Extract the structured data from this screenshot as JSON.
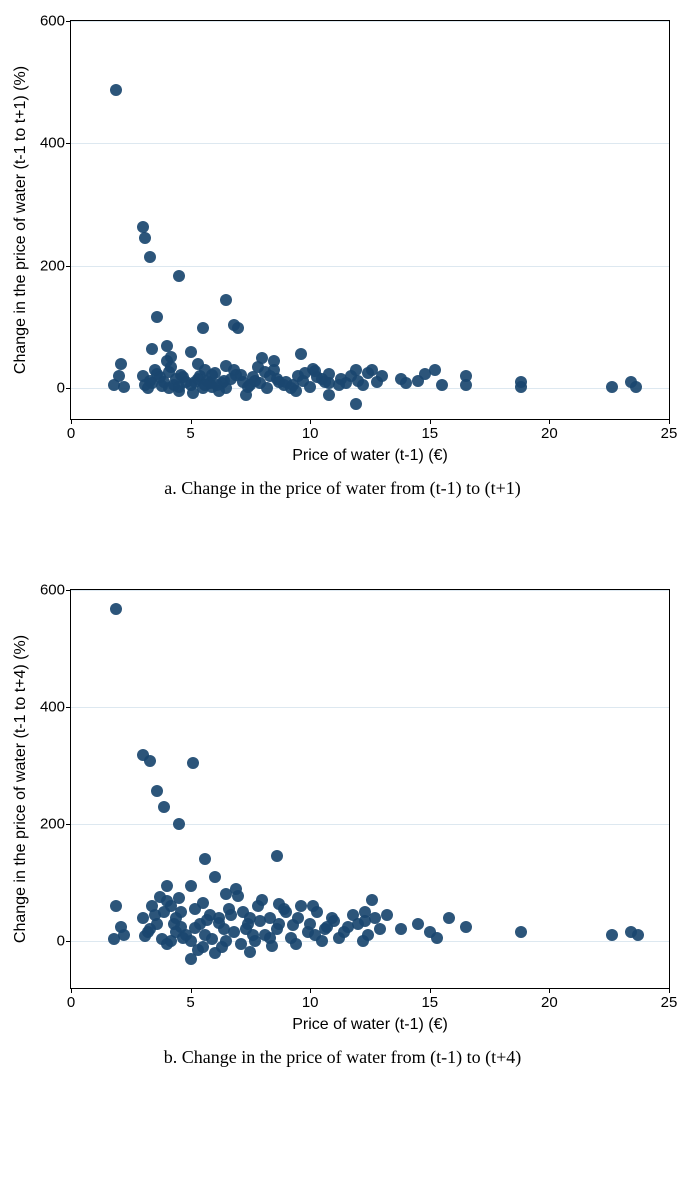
{
  "panel_a": {
    "type": "scatter",
    "caption": "a. Change in the price of water from (t-1) to (t+1)",
    "xlabel": "Price of water (t-1) (€)",
    "ylabel": "Change in the price of water (t-1 to t+1) (%)",
    "xlim": [
      0,
      25
    ],
    "ylim": [
      -50,
      600
    ],
    "xticks": [
      0,
      5,
      10,
      15,
      20,
      25
    ],
    "yticks": [
      0,
      200,
      400,
      600
    ],
    "background_color": "#ffffff",
    "grid_color": "#dde8f0",
    "axis_color": "#000000",
    "tick_fontsize": 15,
    "label_fontsize": 16,
    "marker_color": "#1a476f",
    "marker_radius": 6,
    "marker_opacity": 0.92,
    "points": [
      [
        1.9,
        488
      ],
      [
        1.8,
        5
      ],
      [
        2.0,
        20
      ],
      [
        2.1,
        40
      ],
      [
        2.2,
        2
      ],
      [
        3.0,
        264
      ],
      [
        3.1,
        246
      ],
      [
        3.3,
        215
      ],
      [
        3.6,
        117
      ],
      [
        3.4,
        65
      ],
      [
        3.0,
        20
      ],
      [
        3.1,
        5
      ],
      [
        3.3,
        12
      ],
      [
        3.5,
        30
      ],
      [
        3.7,
        18
      ],
      [
        3.2,
        0
      ],
      [
        3.4,
        8
      ],
      [
        3.6,
        24
      ],
      [
        3.8,
        4
      ],
      [
        3.9,
        10
      ],
      [
        4.5,
        183
      ],
      [
        4.0,
        70
      ],
      [
        4.2,
        35
      ],
      [
        4.4,
        15
      ],
      [
        4.6,
        22
      ],
      [
        4.8,
        10
      ],
      [
        4.1,
        0
      ],
      [
        4.3,
        6
      ],
      [
        4.5,
        -5
      ],
      [
        4.7,
        18
      ],
      [
        4.0,
        44
      ],
      [
        4.2,
        52
      ],
      [
        4.1,
        26
      ],
      [
        4.5,
        3
      ],
      [
        5.0,
        60
      ],
      [
        5.2,
        10
      ],
      [
        5.4,
        20
      ],
      [
        5.5,
        0
      ],
      [
        5.6,
        30
      ],
      [
        5.8,
        8
      ],
      [
        5.0,
        5
      ],
      [
        5.3,
        15
      ],
      [
        5.7,
        12
      ],
      [
        5.9,
        3
      ],
      [
        5.1,
        -8
      ],
      [
        5.3,
        40
      ],
      [
        5.5,
        99
      ],
      [
        5.6,
        6
      ],
      [
        5.9,
        22
      ],
      [
        6.5,
        145
      ],
      [
        6.8,
        103
      ],
      [
        6.0,
        25
      ],
      [
        6.3,
        8
      ],
      [
        6.5,
        0
      ],
      [
        6.7,
        15
      ],
      [
        6.9,
        22
      ],
      [
        6.1,
        6
      ],
      [
        6.4,
        12
      ],
      [
        6.8,
        30
      ],
      [
        6.2,
        -4
      ],
      [
        6.5,
        36
      ],
      [
        7.0,
        98
      ],
      [
        7.2,
        10
      ],
      [
        7.4,
        3
      ],
      [
        7.6,
        18
      ],
      [
        7.8,
        35
      ],
      [
        7.1,
        22
      ],
      [
        7.3,
        -10
      ],
      [
        7.5,
        6
      ],
      [
        7.7,
        12
      ],
      [
        7.9,
        8
      ],
      [
        8.0,
        50
      ],
      [
        8.3,
        20
      ],
      [
        8.6,
        15
      ],
      [
        8.9,
        5
      ],
      [
        8.2,
        0
      ],
      [
        8.5,
        30
      ],
      [
        8.7,
        10
      ],
      [
        8.1,
        26
      ],
      [
        8.5,
        45
      ],
      [
        9.6,
        56
      ],
      [
        9.0,
        10
      ],
      [
        9.3,
        5
      ],
      [
        9.5,
        20
      ],
      [
        9.8,
        25
      ],
      [
        9.2,
        0
      ],
      [
        9.7,
        12
      ],
      [
        9.4,
        -5
      ],
      [
        10.2,
        28
      ],
      [
        10.5,
        15
      ],
      [
        10.8,
        8
      ],
      [
        10.0,
        3
      ],
      [
        10.3,
        18
      ],
      [
        10.6,
        10
      ],
      [
        10.8,
        -10
      ],
      [
        10.8,
        23
      ],
      [
        10.1,
        32
      ],
      [
        11.2,
        5
      ],
      [
        11.5,
        8
      ],
      [
        11.9,
        30
      ],
      [
        11.9,
        -25
      ],
      [
        11.3,
        15
      ],
      [
        11.7,
        20
      ],
      [
        12.0,
        12
      ],
      [
        12.4,
        25
      ],
      [
        12.8,
        10
      ],
      [
        12.2,
        6
      ],
      [
        12.6,
        30
      ],
      [
        13.0,
        20
      ],
      [
        13.8,
        15
      ],
      [
        14.0,
        8
      ],
      [
        14.5,
        12
      ],
      [
        14.8,
        23
      ],
      [
        15.2,
        30
      ],
      [
        15.5,
        6
      ],
      [
        16.5,
        20
      ],
      [
        16.5,
        5
      ],
      [
        18.8,
        10
      ],
      [
        18.8,
        3
      ],
      [
        22.6,
        3
      ],
      [
        23.4,
        10
      ],
      [
        23.6,
        3
      ]
    ]
  },
  "panel_b": {
    "type": "scatter",
    "caption": "b. Change in the price of water from (t-1) to (t+4)",
    "xlabel": "Price of water (t-1) (€)",
    "ylabel": "Change in the price of water (t-1 to t+4) (%)",
    "xlim": [
      0,
      25
    ],
    "ylim": [
      -80,
      600
    ],
    "xticks": [
      0,
      5,
      10,
      15,
      20,
      25
    ],
    "yticks": [
      0,
      200,
      400,
      600
    ],
    "background_color": "#ffffff",
    "grid_color": "#dde8f0",
    "axis_color": "#000000",
    "tick_fontsize": 15,
    "label_fontsize": 16,
    "marker_color": "#1a476f",
    "marker_radius": 6,
    "marker_opacity": 0.92,
    "points": [
      [
        1.9,
        568
      ],
      [
        1.9,
        60
      ],
      [
        2.1,
        25
      ],
      [
        2.2,
        10
      ],
      [
        1.8,
        3
      ],
      [
        3.0,
        318
      ],
      [
        3.3,
        307
      ],
      [
        3.6,
        257
      ],
      [
        3.9,
        230
      ],
      [
        3.0,
        40
      ],
      [
        3.2,
        15
      ],
      [
        3.4,
        60
      ],
      [
        3.6,
        30
      ],
      [
        3.8,
        3
      ],
      [
        3.1,
        8
      ],
      [
        3.3,
        20
      ],
      [
        3.5,
        45
      ],
      [
        3.7,
        75
      ],
      [
        3.9,
        50
      ],
      [
        4.5,
        200
      ],
      [
        4.0,
        95
      ],
      [
        4.2,
        60
      ],
      [
        4.4,
        40
      ],
      [
        4.6,
        25
      ],
      [
        4.8,
        10
      ],
      [
        4.0,
        -5
      ],
      [
        4.2,
        0
      ],
      [
        4.4,
        15
      ],
      [
        4.6,
        50
      ],
      [
        4.0,
        68
      ],
      [
        4.3,
        30
      ],
      [
        4.5,
        74
      ],
      [
        4.7,
        6
      ],
      [
        5.1,
        305
      ],
      [
        5.0,
        95
      ],
      [
        5.6,
        140
      ],
      [
        5.2,
        55
      ],
      [
        5.4,
        30
      ],
      [
        5.6,
        10
      ],
      [
        5.8,
        45
      ],
      [
        5.0,
        0
      ],
      [
        5.3,
        -15
      ],
      [
        5.5,
        65
      ],
      [
        5.0,
        -30
      ],
      [
        5.2,
        22
      ],
      [
        5.5,
        -10
      ],
      [
        5.7,
        36
      ],
      [
        5.9,
        3
      ],
      [
        6.0,
        110
      ],
      [
        6.5,
        80
      ],
      [
        6.9,
        90
      ],
      [
        6.2,
        40
      ],
      [
        6.4,
        20
      ],
      [
        6.6,
        55
      ],
      [
        6.8,
        15
      ],
      [
        6.0,
        -20
      ],
      [
        6.3,
        -10
      ],
      [
        6.5,
        0
      ],
      [
        6.2,
        31
      ],
      [
        6.7,
        45
      ],
      [
        7.0,
        78
      ],
      [
        7.2,
        50
      ],
      [
        7.4,
        30
      ],
      [
        7.6,
        10
      ],
      [
        7.8,
        60
      ],
      [
        7.1,
        -5
      ],
      [
        7.3,
        20
      ],
      [
        7.5,
        40
      ],
      [
        7.7,
        0
      ],
      [
        7.9,
        35
      ],
      [
        7.5,
        -18
      ],
      [
        8.6,
        145
      ],
      [
        8.0,
        70
      ],
      [
        8.3,
        40
      ],
      [
        8.6,
        20
      ],
      [
        8.9,
        55
      ],
      [
        8.1,
        10
      ],
      [
        8.4,
        -8
      ],
      [
        8.7,
        30
      ],
      [
        8.3,
        5
      ],
      [
        8.7,
        64
      ],
      [
        9.0,
        50
      ],
      [
        9.3,
        28
      ],
      [
        9.6,
        60
      ],
      [
        9.9,
        15
      ],
      [
        9.2,
        5
      ],
      [
        9.5,
        40
      ],
      [
        9.4,
        -5
      ],
      [
        10.0,
        30
      ],
      [
        10.3,
        50
      ],
      [
        10.6,
        20
      ],
      [
        10.9,
        40
      ],
      [
        10.2,
        10
      ],
      [
        10.5,
        0
      ],
      [
        10.1,
        60
      ],
      [
        10.7,
        24
      ],
      [
        11.0,
        35
      ],
      [
        11.4,
        15
      ],
      [
        11.8,
        45
      ],
      [
        11.2,
        5
      ],
      [
        11.6,
        25
      ],
      [
        12.0,
        30
      ],
      [
        12.3,
        50
      ],
      [
        12.6,
        70
      ],
      [
        12.9,
        20
      ],
      [
        12.4,
        10
      ],
      [
        12.7,
        40
      ],
      [
        12.2,
        0
      ],
      [
        12.3,
        35
      ],
      [
        13.2,
        45
      ],
      [
        13.8,
        20
      ],
      [
        14.5,
        30
      ],
      [
        15.0,
        15
      ],
      [
        15.8,
        40
      ],
      [
        15.3,
        5
      ],
      [
        16.5,
        25
      ],
      [
        18.8,
        15
      ],
      [
        22.6,
        10
      ],
      [
        23.4,
        15
      ],
      [
        23.7,
        10
      ]
    ]
  }
}
